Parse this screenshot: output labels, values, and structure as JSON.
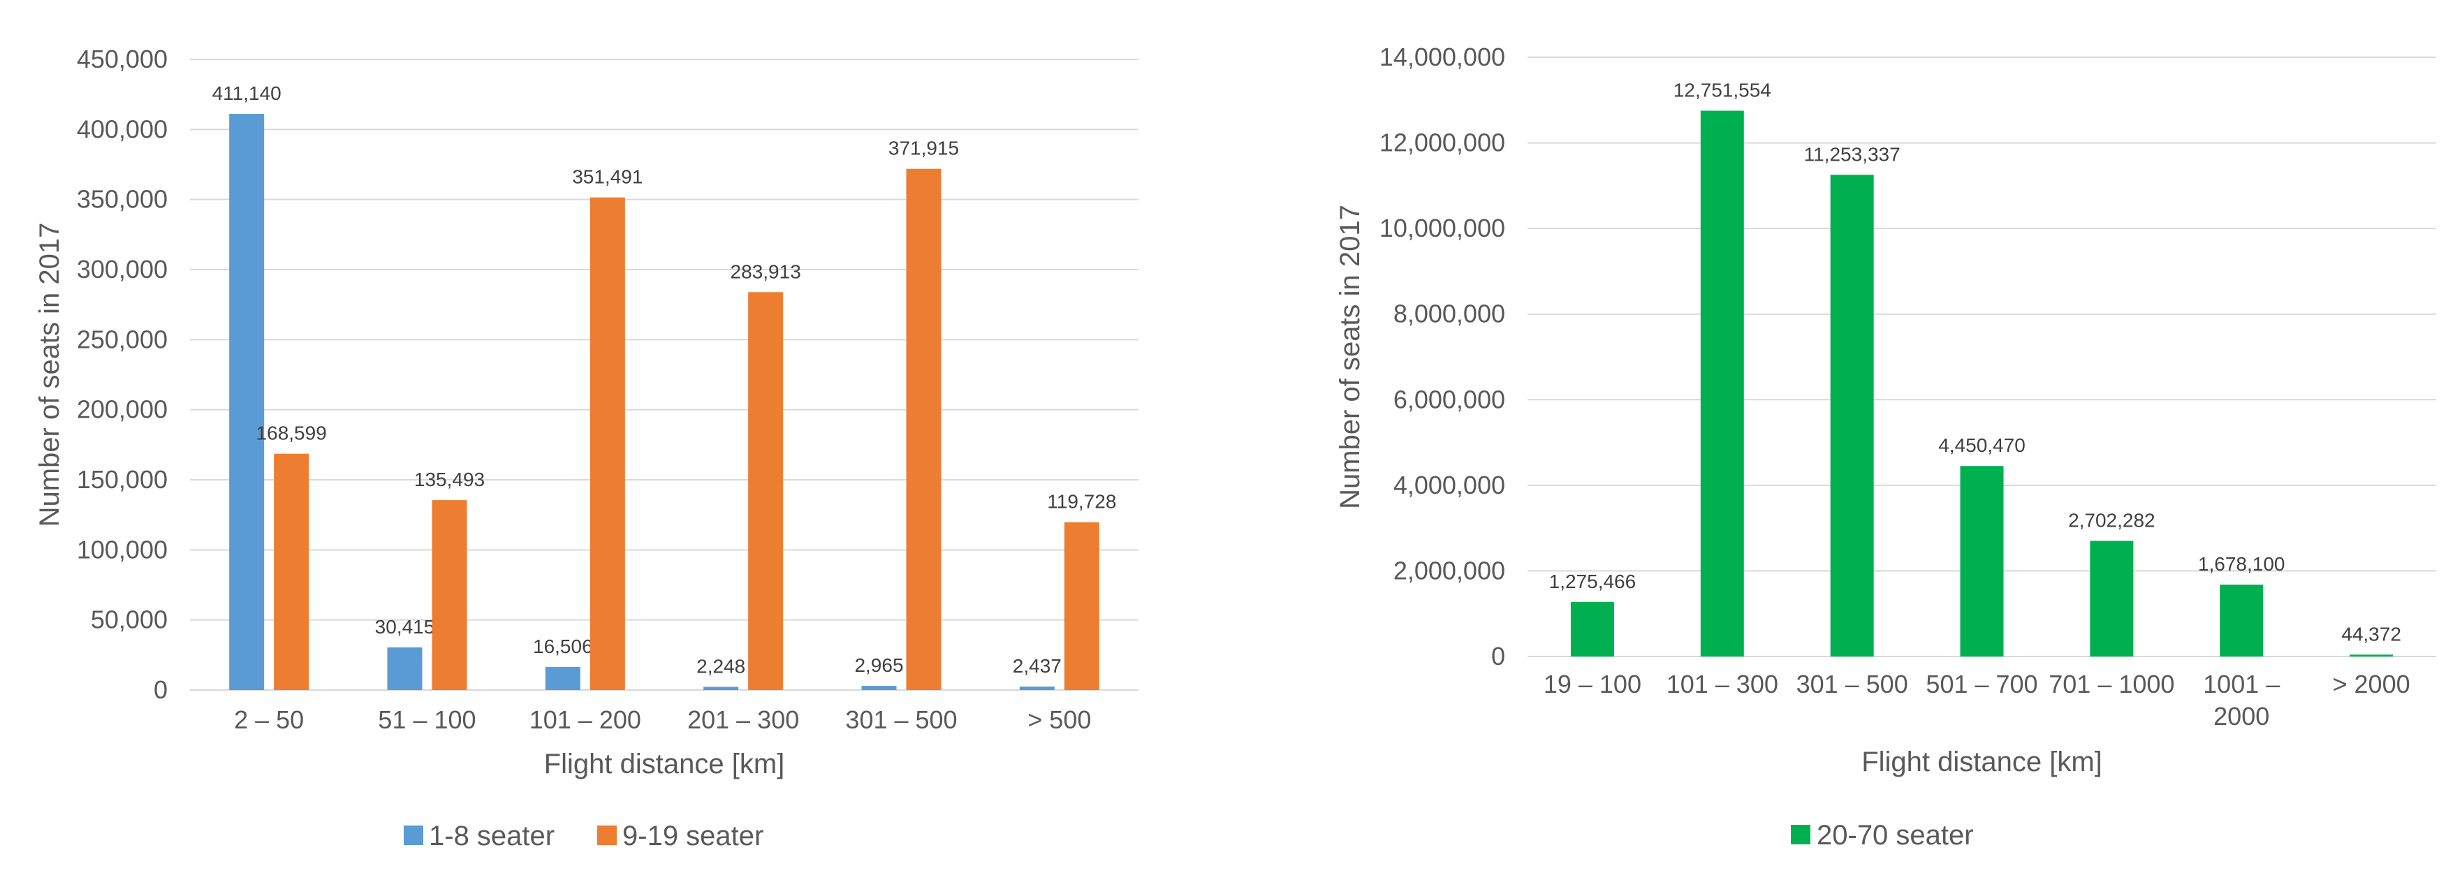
{
  "chart_data": [
    {
      "type": "bar",
      "categories": [
        "2 – 50",
        "51 – 100",
        "101 – 200",
        "201 – 300",
        "301 – 500",
        "> 500"
      ],
      "series": [
        {
          "name": "1-8 seater",
          "color": "#5B9BD5",
          "values": [
            411140,
            30415,
            16506,
            2248,
            2965,
            2437
          ],
          "labels": [
            "411,140",
            "30,415",
            "16,506",
            "2,248",
            "2,965",
            "2,437"
          ]
        },
        {
          "name": "9-19 seater",
          "color": "#ED7D31",
          "values": [
            168599,
            135493,
            351491,
            283913,
            371915,
            119728
          ],
          "labels": [
            "168,599",
            "135,493",
            "351,491",
            "283,913",
            "371,915",
            "119,728"
          ]
        }
      ],
      "xlabel": "Flight distance [km]",
      "ylabel": "Number of seats in 2017",
      "ylim": [
        0,
        450000
      ],
      "yticks": [
        0,
        50000,
        100000,
        150000,
        200000,
        250000,
        300000,
        350000,
        400000,
        450000
      ],
      "ytick_labels": [
        "0",
        "50,000",
        "100,000",
        "150,000",
        "200,000",
        "250,000",
        "300,000",
        "350,000",
        "400,000",
        "450,000"
      ],
      "grid": true,
      "legend_position": "bottom"
    },
    {
      "type": "bar",
      "categories": [
        [
          "19 – 100"
        ],
        [
          "101 – 300"
        ],
        [
          "301 – 500"
        ],
        [
          "501 – 700"
        ],
        [
          "701 – 1000"
        ],
        [
          "1001 –",
          "2000"
        ],
        [
          "> 2000"
        ]
      ],
      "series": [
        {
          "name": "20-70 seater",
          "color": "#00B050",
          "values": [
            1275466,
            12751554,
            11253337,
            4450470,
            2702282,
            1678100,
            44372
          ],
          "labels": [
            "1,275,466",
            "12,751,554",
            "11,253,337",
            "4,450,470",
            "2,702,282",
            "1,678,100",
            "44,372"
          ]
        }
      ],
      "xlabel": "Flight distance [km]",
      "ylabel": "Number of seats in 2017",
      "ylim": [
        0,
        14000000
      ],
      "yticks": [
        0,
        2000000,
        4000000,
        6000000,
        8000000,
        10000000,
        12000000,
        14000000
      ],
      "ytick_labels": [
        "0",
        "2,000,000",
        "4,000,000",
        "6,000,000",
        "8,000,000",
        "10,000,000",
        "12,000,000",
        "14,000,000"
      ],
      "grid": true,
      "legend_position": "bottom"
    }
  ]
}
